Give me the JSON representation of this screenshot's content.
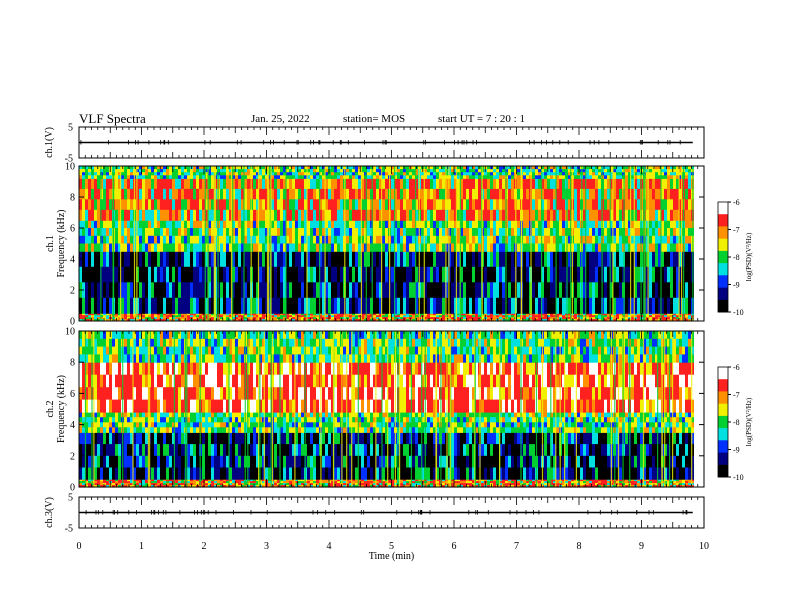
{
  "header": {
    "title": "VLF Spectra",
    "date": "Jan. 25, 2022",
    "station": "station= MOS",
    "start_ut": "start UT =   7 : 20 : 1"
  },
  "chart_data": [
    {
      "type": "line",
      "name": "ch1-waveform",
      "ylabel": "ch.1(V)",
      "ylim": [
        -5,
        5
      ],
      "yticks": [
        "5",
        "-5"
      ],
      "x": [
        0,
        9.82
      ],
      "y": [
        0,
        0
      ]
    },
    {
      "type": "heatmap",
      "name": "ch1-spectrogram",
      "ylabel_lines": [
        "ch.1",
        "Frequency (kHz)"
      ],
      "xlim": [
        0,
        10
      ],
      "ylim": [
        0,
        10
      ],
      "yticks": [
        "0",
        "2",
        "4",
        "6",
        "8",
        "10"
      ],
      "data_extent_min": 9.82,
      "bands_khz": [
        {
          "from": 0,
          "to": 0.5,
          "level": "high"
        },
        {
          "from": 0.5,
          "to": 4.5,
          "level": "low"
        },
        {
          "from": 4.5,
          "to": 6.5,
          "level": "mid"
        },
        {
          "from": 6.5,
          "to": 9.2,
          "level": "high"
        },
        {
          "from": 9.2,
          "to": 10,
          "level": "mid"
        }
      ],
      "colorbar": {
        "label": "log(PSD)(V²/Hz)",
        "min": -10,
        "max": -6,
        "ticks": [
          "-6",
          "-7",
          "-8",
          "-9",
          "-10"
        ]
      }
    },
    {
      "type": "heatmap",
      "name": "ch2-spectrogram",
      "ylabel_lines": [
        "ch.2",
        "Frequency (kHz)"
      ],
      "xlim": [
        0,
        10
      ],
      "ylim": [
        0,
        10
      ],
      "yticks": [
        "0",
        "2",
        "4",
        "6",
        "8",
        "10"
      ],
      "data_extent_min": 9.82,
      "bands_khz": [
        {
          "from": 0,
          "to": 0.5,
          "level": "high"
        },
        {
          "from": 0.5,
          "to": 3.5,
          "level": "low"
        },
        {
          "from": 3.5,
          "to": 4.8,
          "level": "mid"
        },
        {
          "from": 4.8,
          "to": 8.0,
          "level": "peak"
        },
        {
          "from": 8.0,
          "to": 10,
          "level": "mid"
        }
      ],
      "colorbar": {
        "label": "log(PSD)(V²/Hz)",
        "min": -10,
        "max": -6,
        "ticks": [
          "-6",
          "-7",
          "-8",
          "-9",
          "-10"
        ]
      }
    },
    {
      "type": "line",
      "name": "ch3-waveform",
      "ylabel": "ch.3(V)",
      "ylim": [
        -5,
        5
      ],
      "yticks": [
        "5",
        "-5"
      ],
      "x": [
        0,
        9.82
      ],
      "y": [
        0,
        0
      ]
    }
  ],
  "xaxis": {
    "label": "Time (min)",
    "range": [
      0,
      10
    ],
    "ticks": [
      "0",
      "1",
      "2",
      "3",
      "4",
      "5",
      "6",
      "7",
      "8",
      "9",
      "10"
    ]
  },
  "colors": {
    "black": "#000000",
    "navy": "#000080",
    "blue": "#0030ff",
    "cyan": "#00e0e0",
    "green": "#00d030",
    "yellow": "#f0f000",
    "orange": "#ff9000",
    "red": "#ff2020",
    "white": "#ffffff"
  }
}
